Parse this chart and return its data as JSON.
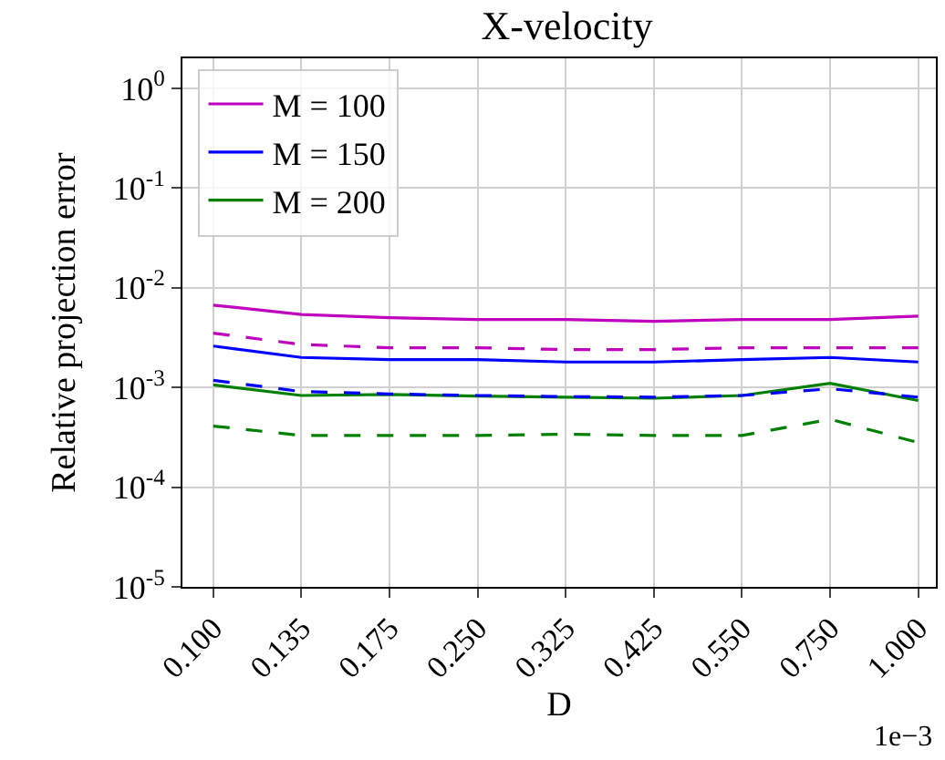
{
  "chart_data": {
    "type": "line",
    "title": "X-velocity",
    "xlabel": "D",
    "ylabel": "Relative projection error",
    "categories": [
      "0.100",
      "0.135",
      "0.175",
      "0.250",
      "0.325",
      "0.425",
      "0.550",
      "0.750",
      "1.000"
    ],
    "series": [
      {
        "name": "M = 100",
        "color": "#bf00bf",
        "line_style": "solid",
        "values": [
          0.0067,
          0.0054,
          0.005,
          0.0048,
          0.0048,
          0.0046,
          0.0048,
          0.0048,
          0.0052
        ]
      },
      {
        "name": "M = 150",
        "color": "#0000ff",
        "line_style": "solid",
        "values": [
          0.0026,
          0.002,
          0.0019,
          0.0019,
          0.0018,
          0.0018,
          0.0019,
          0.002,
          0.0018
        ]
      },
      {
        "name": "M = 200",
        "color": "#008000",
        "line_style": "solid",
        "values": [
          0.00106,
          0.00083,
          0.00085,
          0.00082,
          0.0008,
          0.00078,
          0.00083,
          0.0011,
          0.00074
        ]
      },
      {
        "color": "#bf00bf",
        "line_style": "dashed",
        "values": [
          0.0035,
          0.0027,
          0.0025,
          0.0025,
          0.0024,
          0.0024,
          0.0025,
          0.0025,
          0.0025
        ]
      },
      {
        "color": "#0000ff",
        "line_style": "dashed",
        "values": [
          0.00118,
          0.00091,
          0.00086,
          0.00083,
          0.00081,
          0.0008,
          0.00083,
          0.00097,
          0.0008
        ]
      },
      {
        "color": "#008000",
        "line_style": "dashed",
        "values": [
          0.00041,
          0.00033,
          0.00033,
          0.00033,
          0.00034,
          0.00033,
          0.00033,
          0.00048,
          0.00028
        ]
      }
    ],
    "log": "y",
    "ylim": [
      1e-05,
      2.0
    ],
    "yticks": [
      {
        "value": 1e-05,
        "label": "10$^{-5}$"
      },
      {
        "value": 0.0001,
        "label": "10$^{-4}$"
      },
      {
        "value": 0.001,
        "label": "10$^{-3}$"
      },
      {
        "value": 0.01,
        "label": "10$^{-2}$"
      },
      {
        "value": 0.1,
        "label": "10$^{-1}$"
      },
      {
        "value": 1,
        "label": "10$^{0}$"
      }
    ],
    "grid": true,
    "legend": "top left",
    "marker": "none",
    "annotations": [
      "1e−3"
    ]
  }
}
